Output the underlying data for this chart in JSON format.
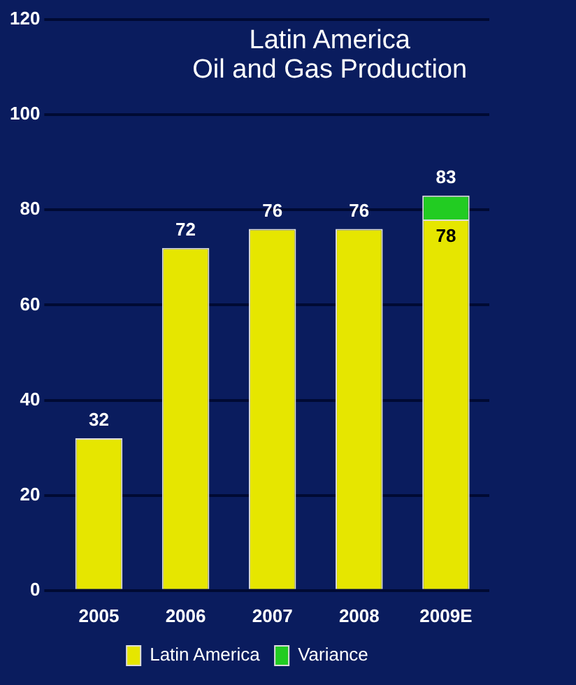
{
  "chart_data": {
    "type": "bar",
    "title": "Latin America\nOil and Gas Production",
    "categories": [
      "2005",
      "2006",
      "2007",
      "2008",
      "2009E"
    ],
    "series": [
      {
        "name": "Latin America",
        "color": "#e6e600",
        "values": [
          32,
          72,
          76,
          76,
          78
        ],
        "value_labels": [
          "32",
          "72",
          "76",
          "76",
          "78"
        ]
      },
      {
        "name": "Variance",
        "color": "#22cc22",
        "values": [
          null,
          null,
          null,
          null,
          5
        ]
      }
    ],
    "stacked": true,
    "totals": [
      null,
      null,
      null,
      null,
      "83"
    ],
    "ylim": [
      0,
      120
    ],
    "yticks": [
      0,
      20,
      40,
      60,
      80,
      100,
      120
    ],
    "grid": "y",
    "legend": "bottom"
  }
}
